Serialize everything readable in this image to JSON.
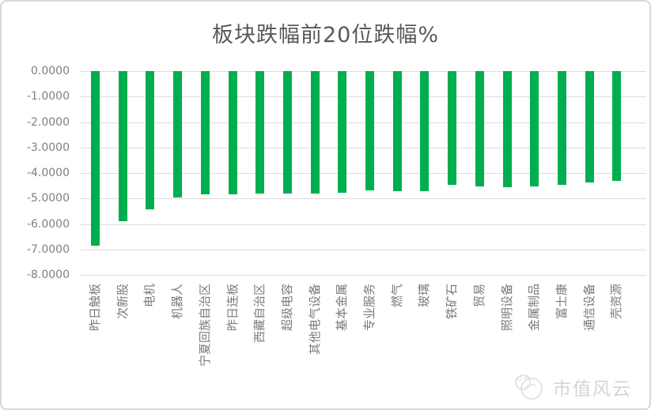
{
  "page": {
    "watermark_text": "市值风云"
  },
  "chart_data": {
    "type": "bar",
    "title": "板块跌幅前20位跌幅%",
    "categories": [
      "昨日触板",
      "次新股",
      "电机",
      "机器人",
      "宁夏回族自治区",
      "昨日连板",
      "西藏自治区",
      "超级电容",
      "其他电气设备",
      "基本金属",
      "专业服务",
      "燃气",
      "玻璃",
      "铁矿石",
      "贸易",
      "照明设备",
      "金属制品",
      "富士康",
      "通信设备",
      "壳资源"
    ],
    "values": [
      -6.85,
      -5.9,
      -5.44,
      -4.97,
      -4.85,
      -4.85,
      -4.82,
      -4.81,
      -4.8,
      -4.76,
      -4.68,
      -4.72,
      -4.7,
      -4.46,
      -4.54,
      -4.56,
      -4.54,
      -4.46,
      -4.37,
      -4.3
    ],
    "xlabel": "",
    "ylabel": "",
    "ylim": [
      -8,
      0
    ],
    "ytick_labels": [
      "0.0000",
      "-1.0000",
      "-2.0000",
      "-3.0000",
      "-4.0000",
      "-5.0000",
      "-6.0000",
      "-7.0000",
      "-8.0000"
    ],
    "grid": true,
    "legend": false,
    "bar_color": "#00AE4F",
    "gridline_color": "#DCDCDC",
    "axis_label_color": "#7F7F7F",
    "title_color": "#595959",
    "watermark_color": "#D4D4D4"
  }
}
